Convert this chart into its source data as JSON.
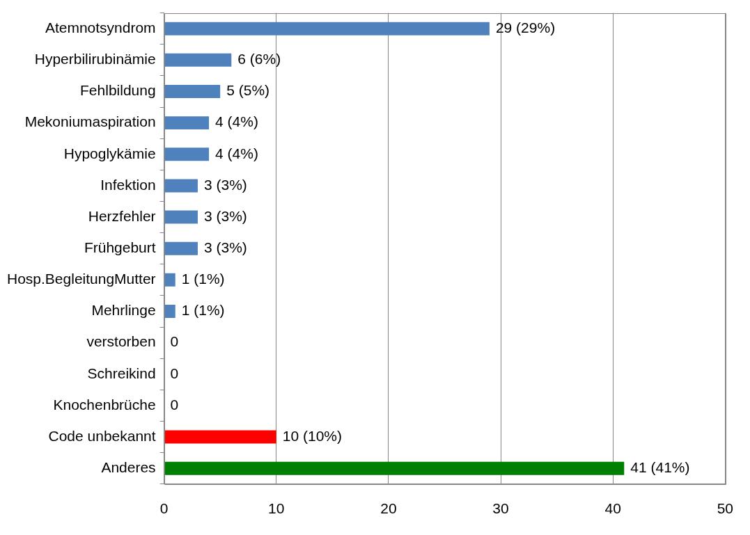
{
  "chart_data": {
    "type": "bar",
    "orientation": "horizontal",
    "categories": [
      "Atemnotsyndrom",
      "Hyperbilirubinämie",
      "Fehlbildung",
      "Mekoniumaspiration",
      "Hypoglykämie",
      "Infektion",
      "Herzfehler",
      "Frühgeburt",
      "Hosp.BegleitungMutter",
      "Mehrlinge",
      "verstorben",
      "Schreikind",
      "Knochenbrüche",
      "Code unbekannt",
      "Anderes"
    ],
    "values": [
      29,
      6,
      5,
      4,
      4,
      3,
      3,
      3,
      1,
      1,
      0,
      0,
      0,
      10,
      41
    ],
    "colors": [
      "#4f81bd",
      "#4f81bd",
      "#4f81bd",
      "#4f81bd",
      "#4f81bd",
      "#4f81bd",
      "#4f81bd",
      "#4f81bd",
      "#4f81bd",
      "#4f81bd",
      "#4f81bd",
      "#4f81bd",
      "#4f81bd",
      "#ff0000",
      "#008000"
    ],
    "value_labels": [
      "29 (29%)",
      "6 (6%)",
      "5 (5%)",
      "4 (4%)",
      "4 (4%)",
      "3 (3%)",
      "3 (3%)",
      "3 (3%)",
      "1 (1%)",
      "1 (1%)",
      "0",
      "0",
      "0",
      "10 (10%)",
      "41 (41%)"
    ],
    "xlim": [
      0,
      50
    ],
    "xticks": [
      0,
      10,
      20,
      30,
      40,
      50
    ],
    "grid": "x",
    "legend": false
  }
}
